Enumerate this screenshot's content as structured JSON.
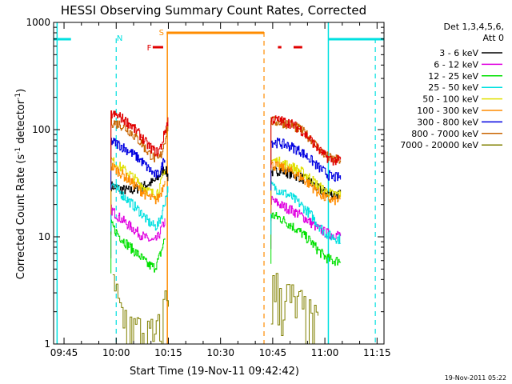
{
  "chart_data": {
    "type": "line",
    "title": "HESSI Observing Summary Count Rates, Corrected",
    "xlabel": "Start Time (19-Nov-11 09:42:42)",
    "ylabel_main": "Corrected Count Rate (s",
    "ylabel_sup1": "-1",
    "ylabel_mid": " detector",
    "ylabel_sup2": "-1",
    "ylabel_end": ")",
    "yscale": "log",
    "ylim": [
      1,
      1000
    ],
    "xlim_minutes": [
      -3,
      92
    ],
    "x_tick_labels": [
      {
        "label": "09:45",
        "minute": 0
      },
      {
        "label": "10:00",
        "minute": 15
      },
      {
        "label": "10:15",
        "minute": 30
      },
      {
        "label": "10:30",
        "minute": 45
      },
      {
        "label": "10:45",
        "minute": 60
      },
      {
        "label": "11:00",
        "minute": 75
      },
      {
        "label": "11:15",
        "minute": 90
      }
    ],
    "y_tick_labels": [
      {
        "label": "1",
        "value": 1
      },
      {
        "label": "10",
        "value": 10
      },
      {
        "label": "100",
        "value": 100
      },
      {
        "label": "1000",
        "value": 1000
      }
    ],
    "legend": {
      "placement": "right",
      "header1": "Det 1,3,4,5,6,",
      "header2": "Att 0"
    },
    "series": [
      {
        "name": "3 - 6 keV",
        "color": "#000000",
        "seg1": [
          [
            13.5,
            30
          ],
          [
            16,
            28
          ],
          [
            19,
            27
          ],
          [
            22,
            29
          ],
          [
            24,
            31
          ],
          [
            26,
            33
          ],
          [
            27,
            36
          ],
          [
            28,
            40
          ],
          [
            29,
            44
          ],
          [
            30,
            35
          ]
        ],
        "seg2": [
          [
            59.5,
            40
          ],
          [
            62,
            42
          ],
          [
            65,
            39
          ],
          [
            68,
            36
          ],
          [
            71,
            32
          ],
          [
            73,
            28
          ],
          [
            75,
            26
          ],
          [
            77,
            25
          ],
          [
            79.5,
            25
          ]
        ]
      },
      {
        "name": "6 - 12 keV",
        "color": "#e000e0",
        "seg1": [
          [
            13.5,
            18
          ],
          [
            16,
            15
          ],
          [
            19,
            12.5
          ],
          [
            22,
            10.5
          ],
          [
            24,
            9.5
          ],
          [
            26,
            9
          ],
          [
            27,
            10
          ],
          [
            28,
            12
          ],
          [
            29,
            14
          ]
        ],
        "seg2": [
          [
            59.5,
            22
          ],
          [
            62,
            20
          ],
          [
            65,
            18
          ],
          [
            68,
            16
          ],
          [
            71,
            13.5
          ],
          [
            73,
            12
          ],
          [
            75,
            11
          ],
          [
            77,
            10.5
          ],
          [
            79.5,
            10.5
          ]
        ]
      },
      {
        "name": "12 - 25 keV",
        "color": "#00e000",
        "seg1": [
          [
            13.5,
            13
          ],
          [
            16,
            10
          ],
          [
            19,
            8
          ],
          [
            22,
            6.5
          ],
          [
            24,
            5.5
          ],
          [
            26,
            5.2
          ],
          [
            27,
            6
          ],
          [
            28,
            7.5
          ],
          [
            29,
            10
          ]
        ],
        "seg2": [
          [
            59.5,
            16
          ],
          [
            62,
            15
          ],
          [
            65,
            13
          ],
          [
            68,
            11
          ],
          [
            71,
            9
          ],
          [
            73,
            7.5
          ],
          [
            75,
            6.5
          ],
          [
            77,
            6
          ],
          [
            79.5,
            6
          ]
        ]
      },
      {
        "name": "25 - 50 keV",
        "color": "#00e0e0",
        "seg1": [
          [
            13.5,
            32
          ],
          [
            16,
            26
          ],
          [
            19,
            21
          ],
          [
            22,
            17
          ],
          [
            24,
            14
          ],
          [
            26,
            12.5
          ],
          [
            27,
            13
          ],
          [
            28,
            16
          ],
          [
            29,
            22
          ],
          [
            30,
            30
          ]
        ],
        "seg2": [
          [
            59.5,
            30
          ],
          [
            62,
            27
          ],
          [
            65,
            24
          ],
          [
            68,
            20
          ],
          [
            71,
            16
          ],
          [
            73,
            13
          ],
          [
            75,
            11
          ],
          [
            77,
            10
          ],
          [
            79.5,
            9.5
          ]
        ]
      },
      {
        "name": "50 - 100 keV",
        "color": "#e0e000",
        "seg1": [
          [
            13.5,
            52
          ],
          [
            16,
            45
          ],
          [
            19,
            38
          ],
          [
            22,
            31
          ],
          [
            24,
            27
          ],
          [
            26,
            25
          ],
          [
            27,
            27
          ],
          [
            28,
            33
          ],
          [
            29,
            42
          ]
        ],
        "seg2": [
          [
            59.5,
            52
          ],
          [
            62,
            50
          ],
          [
            65,
            46
          ],
          [
            68,
            41
          ],
          [
            71,
            35
          ],
          [
            73,
            30
          ],
          [
            75,
            27
          ],
          [
            77,
            25
          ],
          [
            79.5,
            25
          ]
        ]
      },
      {
        "name": "100 - 300 keV",
        "color": "#ff8c00",
        "seg1": [
          [
            13.5,
            46
          ],
          [
            16,
            40
          ],
          [
            19,
            33
          ],
          [
            22,
            27
          ],
          [
            24,
            24
          ],
          [
            26,
            22
          ],
          [
            27,
            23
          ],
          [
            28,
            27
          ],
          [
            29,
            36
          ]
        ],
        "seg2": [
          [
            59.5,
            47
          ],
          [
            62,
            45
          ],
          [
            65,
            41
          ],
          [
            68,
            36
          ],
          [
            71,
            30
          ],
          [
            73,
            26
          ],
          [
            75,
            23
          ],
          [
            77,
            22
          ],
          [
            79.5,
            22
          ]
        ]
      },
      {
        "name": "300 - 800 keV",
        "color": "#0000e0",
        "seg1": [
          [
            13.5,
            78
          ],
          [
            16,
            72
          ],
          [
            19,
            62
          ],
          [
            22,
            52
          ],
          [
            24,
            44
          ],
          [
            26,
            38
          ],
          [
            27,
            38
          ],
          [
            28,
            44
          ],
          [
            29,
            58
          ]
        ],
        "seg2": [
          [
            59.5,
            77
          ],
          [
            62,
            75
          ],
          [
            65,
            70
          ],
          [
            68,
            63
          ],
          [
            71,
            52
          ],
          [
            73,
            45
          ],
          [
            75,
            40
          ],
          [
            77,
            36
          ],
          [
            79.5,
            36
          ]
        ]
      },
      {
        "name": "800 - 7000 keV",
        "color": "#c86400",
        "seg1": [
          [
            13.5,
            118
          ],
          [
            16,
            112
          ],
          [
            19,
            96
          ],
          [
            22,
            76
          ],
          [
            24,
            62
          ],
          [
            26,
            54
          ],
          [
            27,
            52
          ],
          [
            28,
            60
          ],
          [
            29,
            82
          ],
          [
            30,
            118
          ]
        ],
        "seg2": [
          [
            59.5,
            120
          ],
          [
            62,
            118
          ],
          [
            65,
            112
          ],
          [
            68,
            100
          ],
          [
            71,
            82
          ],
          [
            73,
            67
          ],
          [
            75,
            58
          ],
          [
            77,
            53
          ],
          [
            79.5,
            52
          ]
        ]
      },
      {
        "name": "7000 - 20000 keV",
        "color": "#808000",
        "seg1": [
          [
            14,
            3
          ],
          [
            16,
            2
          ],
          [
            18,
            1.6
          ],
          [
            20,
            1.3
          ],
          [
            22,
            1.2
          ],
          [
            24,
            1.1
          ],
          [
            26,
            1.05
          ],
          [
            28,
            1.3
          ],
          [
            29,
            2.5
          ],
          [
            30,
            3
          ]
        ],
        "seg2": [
          [
            59.5,
            3
          ],
          [
            62,
            3
          ],
          [
            64,
            2.6
          ],
          [
            66,
            2.2
          ],
          [
            68,
            2
          ],
          [
            70,
            1.6
          ],
          [
            72,
            1.4
          ],
          [
            73,
            1.2
          ]
        ]
      },
      {
        "name": "",
        "color": "#e00000",
        "seg1": [
          [
            13.5,
            140
          ],
          [
            16,
            132
          ],
          [
            19,
            112
          ],
          [
            22,
            88
          ],
          [
            24,
            72
          ],
          [
            26,
            63
          ],
          [
            27,
            62
          ],
          [
            28,
            72
          ],
          [
            29,
            98
          ],
          [
            30,
            128
          ]
        ],
        "seg2": [
          [
            59.5,
            125
          ],
          [
            62,
            122
          ],
          [
            65,
            115
          ],
          [
            68,
            100
          ],
          [
            71,
            80
          ],
          [
            73,
            66
          ],
          [
            75,
            57
          ],
          [
            77,
            52
          ],
          [
            79.5,
            52
          ]
        ]
      }
    ],
    "overlays": {
      "night_label": "N",
      "saa_label": "S",
      "flare_label": "F",
      "night_color": "#00e0e0",
      "saa_color": "#ff8c00",
      "flare_color": "#e00000",
      "night_bars": [
        [
          -3,
          2
        ],
        [
          76,
          92
        ]
      ],
      "saa_bar": [
        29.5,
        57.5
      ],
      "flare_bars": [
        [
          25.5,
          28.5
        ],
        [
          61.5,
          62.5
        ],
        [
          66,
          68.5
        ]
      ],
      "night_dashed_minutes": [
        15,
        89.5
      ],
      "night_solid_minutes": [
        -2,
        76
      ],
      "saa_dashed_minutes": [
        57.5
      ],
      "saa_solid_minutes": [
        29.7
      ]
    },
    "footer_date": "19-Nov-2011 05:22"
  }
}
